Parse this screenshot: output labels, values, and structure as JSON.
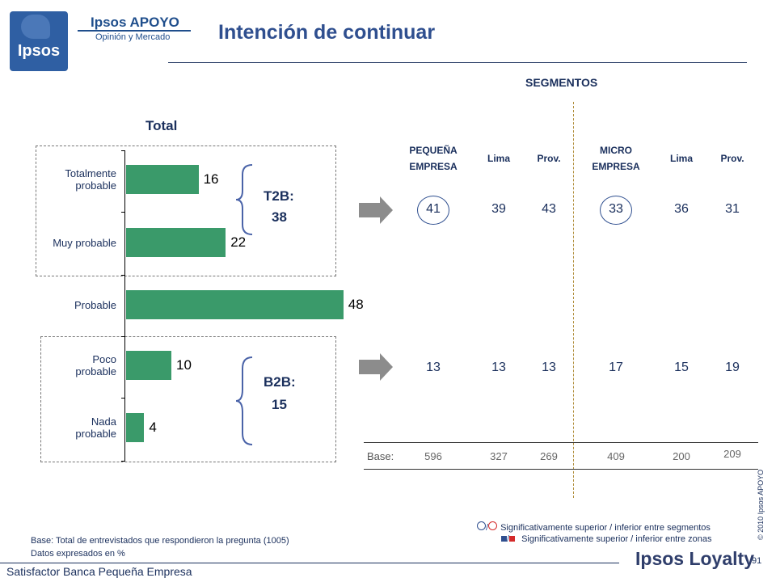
{
  "brand": {
    "name": "Ipsos APOYO",
    "tagline": "Opinión y Mercado",
    "logo_word": "Ipsos"
  },
  "title": "Intención de continuar",
  "segments_heading": "SEGMENTOS",
  "total_label": "Total",
  "chart_data": {
    "type": "bar",
    "orientation": "horizontal",
    "title": "Total",
    "categories": [
      "Totalmente probable",
      "Muy probable",
      "Probable",
      "Poco probable",
      "Nada probable"
    ],
    "values": [
      16,
      22,
      48,
      10,
      4
    ],
    "xlim": [
      0,
      50
    ],
    "groups": [
      {
        "label": "T2B:",
        "value": "38"
      },
      {
        "label": "B2B:",
        "value": "15"
      }
    ]
  },
  "category_lines": [
    [
      "Totalmente",
      "probable"
    ],
    [
      "Muy probable"
    ],
    [
      "Probable"
    ],
    [
      "Poco",
      "probable"
    ],
    [
      "Nada",
      "probable"
    ]
  ],
  "segments": {
    "columns": [
      {
        "lines": [
          "PEQUEÑA",
          "EMPRESA"
        ],
        "t2b": "41",
        "b2b": "13",
        "base": "596",
        "circled": true
      },
      {
        "lines": [
          "Lima"
        ],
        "t2b": "39",
        "b2b": "13",
        "base": "327",
        "circled": false
      },
      {
        "lines": [
          "Prov."
        ],
        "t2b": "43",
        "b2b": "13",
        "base": "269",
        "circled": false
      },
      {
        "lines": [
          "MICRO",
          "EMPRESA"
        ],
        "t2b": "33",
        "b2b": "17",
        "base": "409",
        "circled": true
      },
      {
        "lines": [
          "Lima"
        ],
        "t2b": "36",
        "b2b": "15",
        "base": "200",
        "circled": false
      },
      {
        "lines": [
          "Prov."
        ],
        "t2b": "31",
        "b2b": "19",
        "base": "209",
        "circled": false
      }
    ],
    "base_label": "Base:"
  },
  "notes": {
    "line1": "Base: Total de entrevistados que respondieron la pregunta (1005)",
    "line2": "Datos expresados en %"
  },
  "legend": {
    "segments_text": "Significativamente superior / inferior entre segmentos",
    "zones_text": "Significativamente superior / inferior entre zonas",
    "colors": {
      "superior_zone": "#2f4f8f",
      "inferior_zone": "#d42a2a"
    }
  },
  "copyright": "© 2010 Ipsos APOYO",
  "page_number": "91",
  "footer": "Satisfactor Banca Pequeña Empresa",
  "footer_brand": "Ipsos Loyalty",
  "colors": {
    "bar": "#3a9a6a",
    "title": "#2f4f8f",
    "text": "#1a2f5c",
    "divider": "#b08d3a"
  }
}
